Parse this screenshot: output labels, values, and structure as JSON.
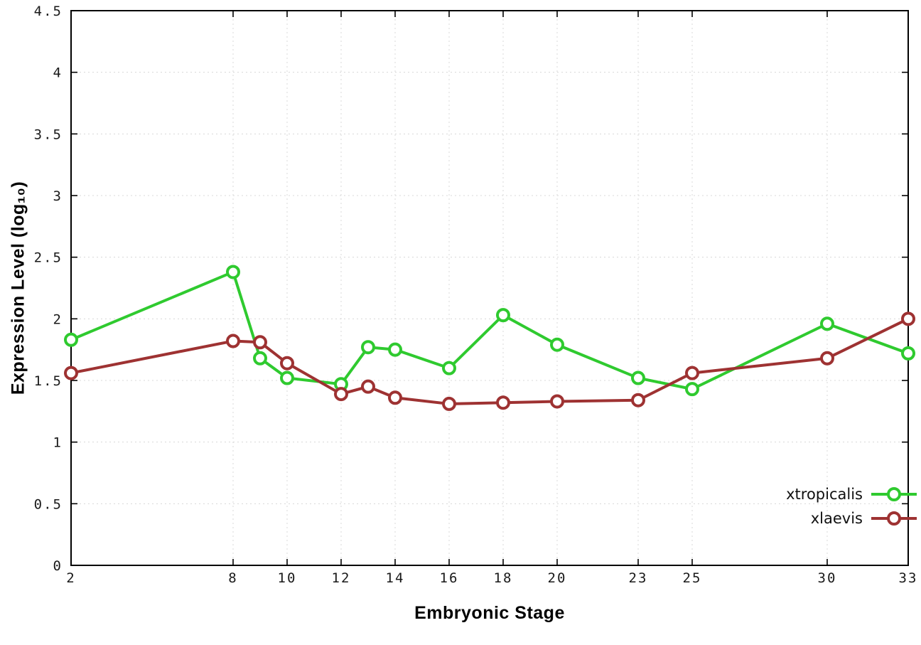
{
  "page": {
    "background": "#ffffff"
  },
  "chart_data": {
    "type": "line",
    "title": "",
    "xlabel": "Embryonic Stage",
    "ylabel": "Expression Level (log₁₀)",
    "xlim": [
      2,
      33
    ],
    "ylim": [
      0,
      4.5
    ],
    "x_ticks": [
      2,
      8,
      10,
      12,
      14,
      16,
      18,
      20,
      23,
      25,
      30,
      33
    ],
    "y_ticks": [
      0,
      0.5,
      1,
      1.5,
      2,
      2.5,
      3,
      3.5,
      4,
      4.5
    ],
    "grid": true,
    "legend_position": "bottom-right",
    "x": [
      2,
      8,
      9,
      10,
      12,
      13,
      14,
      16,
      18,
      20,
      23,
      25,
      30,
      33
    ],
    "series": [
      {
        "name": "xtropicalis",
        "color": "#2fca2f",
        "values": [
          1.83,
          2.38,
          1.68,
          1.52,
          1.47,
          1.77,
          1.75,
          1.6,
          2.03,
          1.79,
          1.52,
          1.43,
          1.96,
          1.72
        ]
      },
      {
        "name": "xlaevis",
        "color": "#9e3232",
        "values": [
          1.56,
          1.82,
          1.81,
          1.64,
          1.39,
          1.45,
          1.36,
          1.31,
          1.32,
          1.33,
          1.34,
          1.56,
          1.68,
          2.0
        ]
      }
    ],
    "style": {
      "grid_color": "#d8d8d8",
      "axis_color": "#000000",
      "tick_label_color": "#1a1a1a",
      "marker_fill": "#ffffff"
    }
  }
}
